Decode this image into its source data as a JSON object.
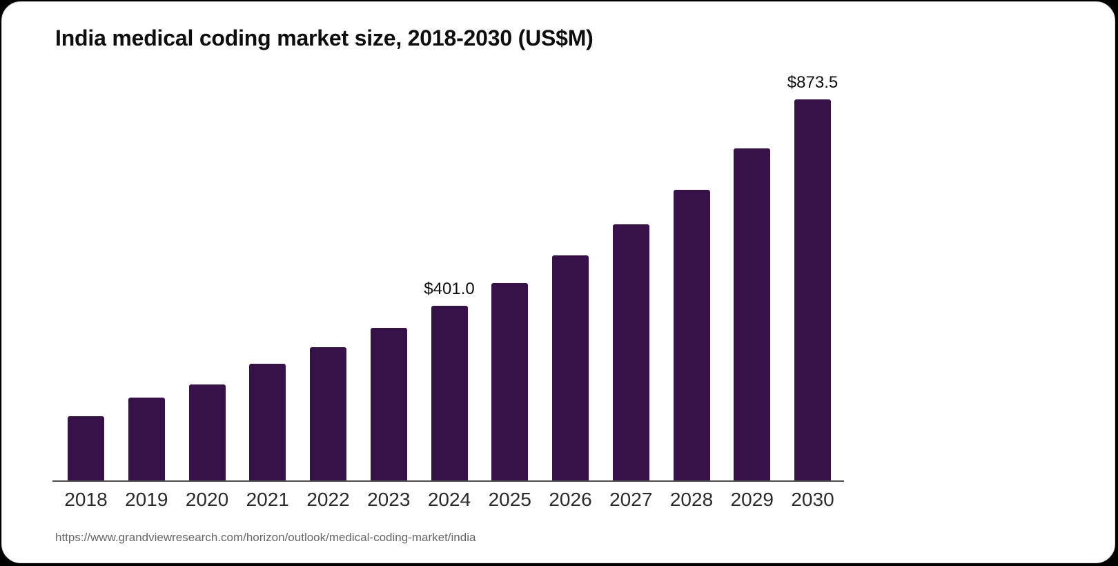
{
  "card": {
    "title": "India medical coding market size, 2018-2030 (US$M)",
    "source_url": "https://www.grandviewresearch.com/horizon/outlook/medical-coding-market/india"
  },
  "chart_data": {
    "type": "bar",
    "title": "India medical coding market size, 2018-2030 (US$M)",
    "xlabel": "",
    "ylabel": "",
    "categories": [
      "2018",
      "2019",
      "2020",
      "2021",
      "2022",
      "2023",
      "2024",
      "2025",
      "2026",
      "2027",
      "2028",
      "2029",
      "2030"
    ],
    "values": [
      147,
      189.5,
      220,
      267,
      305,
      349.5,
      401.0,
      452,
      515.5,
      586.5,
      667,
      760.5,
      873.5
    ],
    "value_labels": [
      "",
      "",
      "",
      "",
      "",
      "",
      "$401.0",
      "",
      "",
      "",
      "",
      "",
      "$873.5"
    ],
    "ylim": [
      0,
      873.5
    ],
    "grid": false,
    "legend": "none",
    "bar_color": "#371249",
    "axis_color": "#4d4d4d",
    "value_label_color": "#0d0d0d",
    "tick_label_color": "#2a2a2a"
  }
}
